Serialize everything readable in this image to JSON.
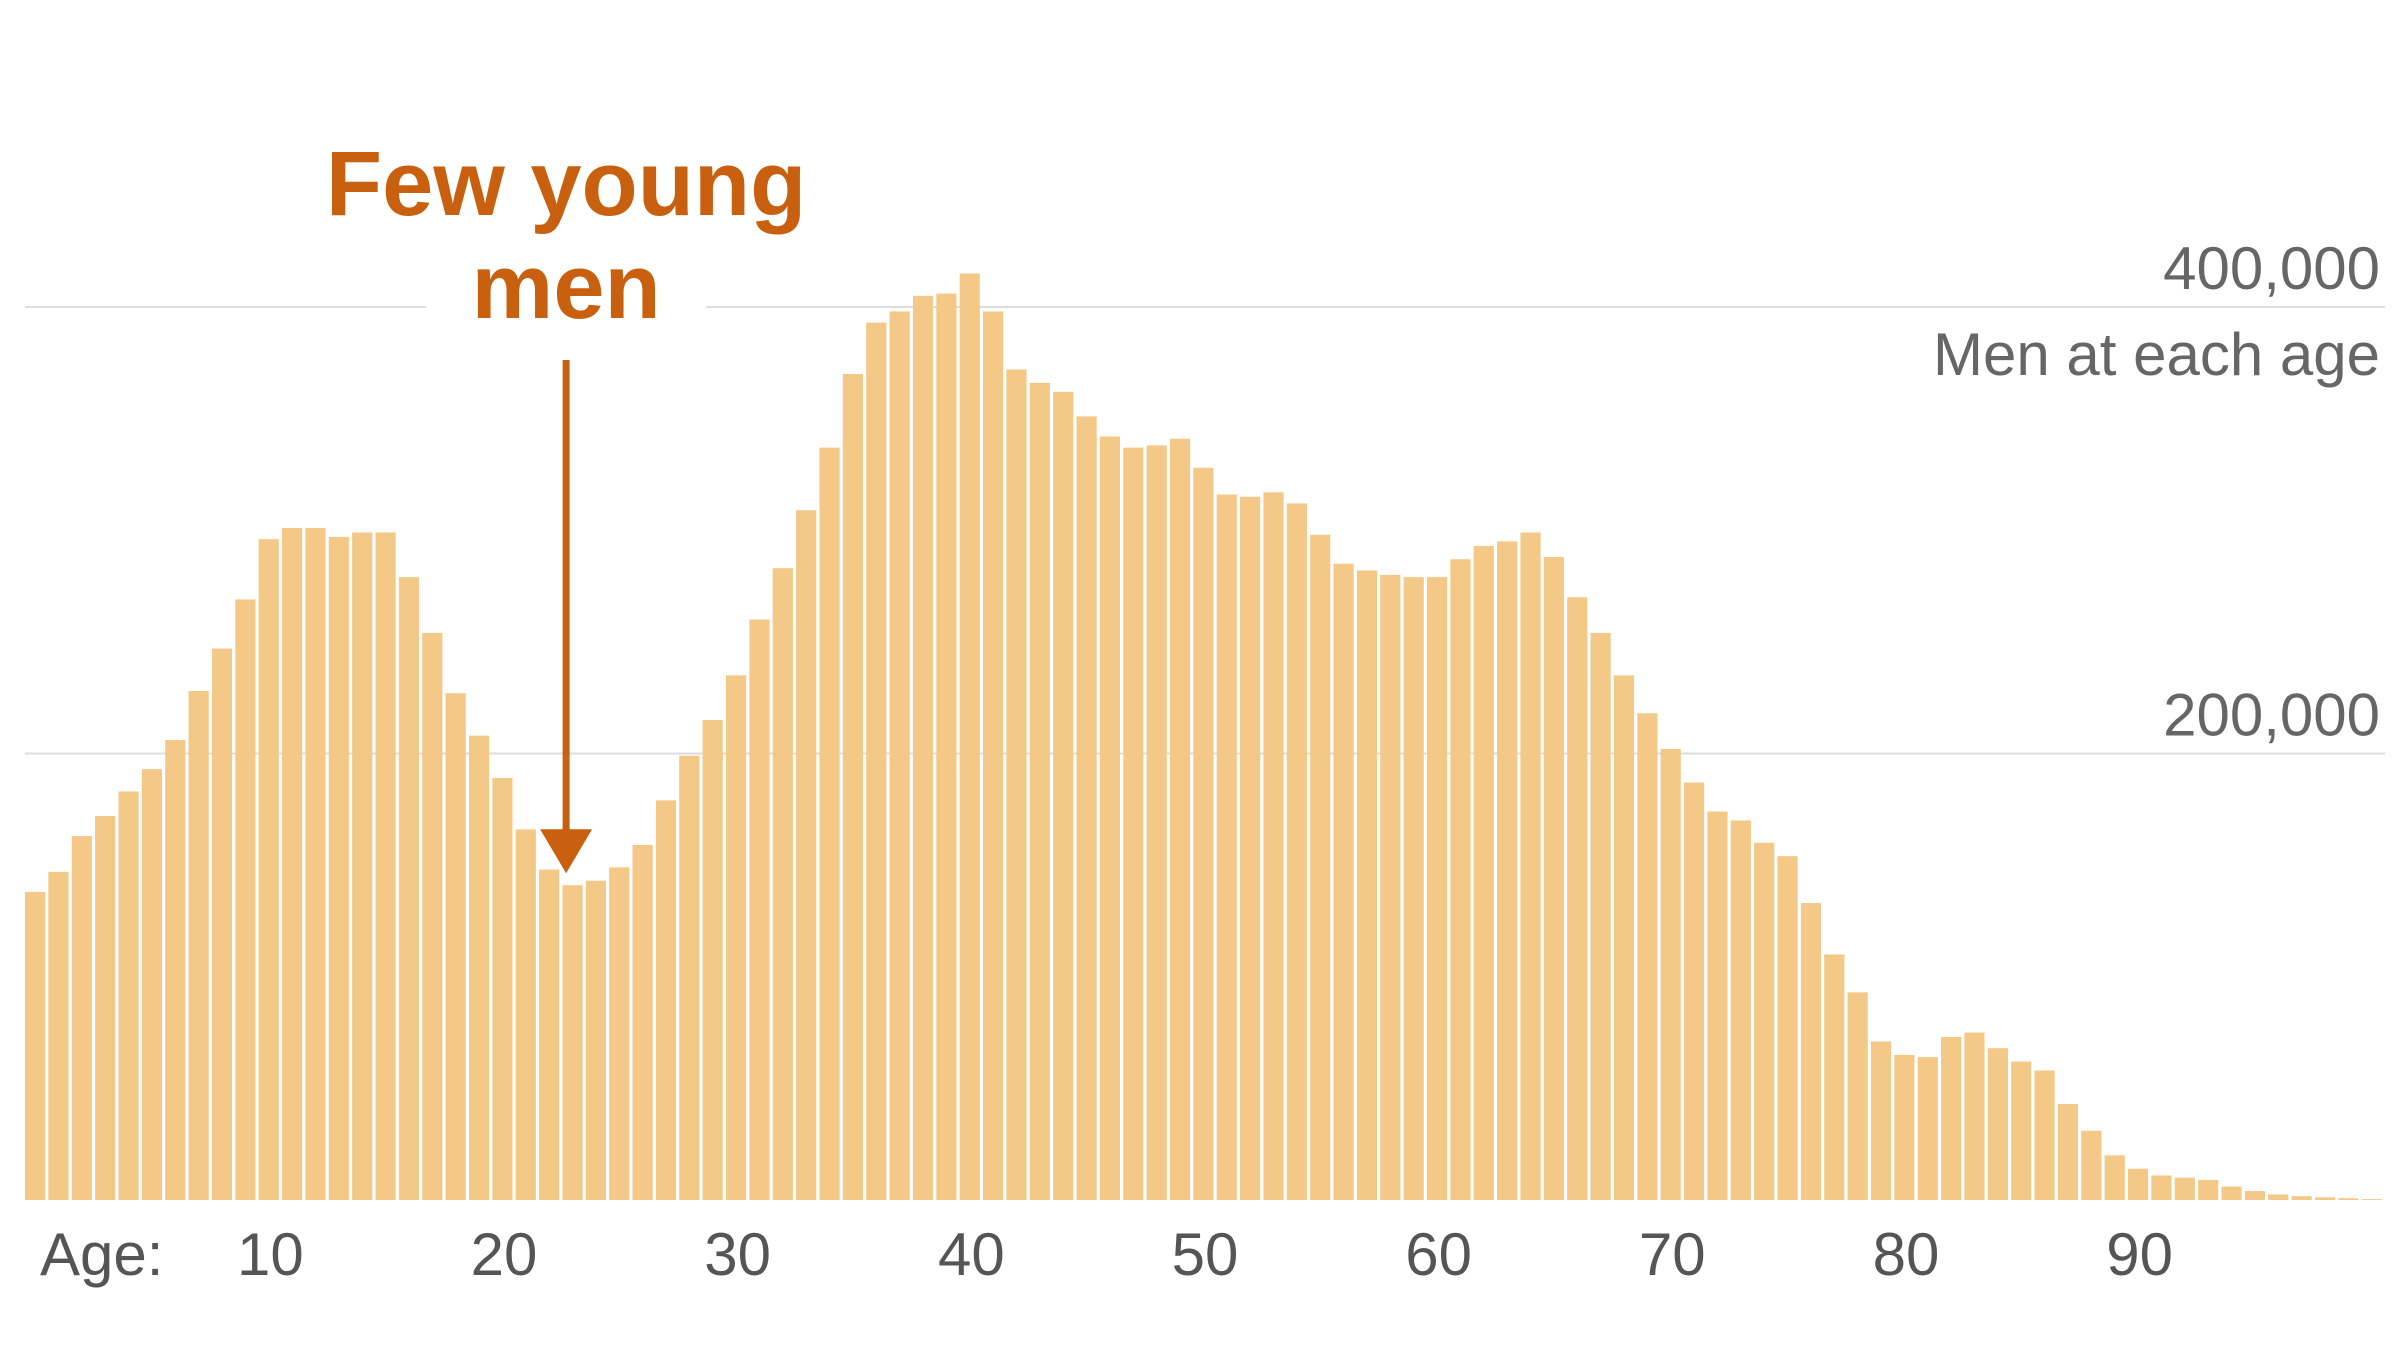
{
  "chart_data": {
    "type": "bar",
    "title": "",
    "xlabel": "Age:",
    "ylabel": "Men at each age",
    "x": [
      0,
      1,
      2,
      3,
      4,
      5,
      6,
      7,
      8,
      9,
      10,
      11,
      12,
      13,
      14,
      15,
      16,
      17,
      18,
      19,
      20,
      21,
      22,
      23,
      24,
      25,
      26,
      27,
      28,
      29,
      30,
      31,
      32,
      33,
      34,
      35,
      36,
      37,
      38,
      39,
      40,
      41,
      42,
      43,
      44,
      45,
      46,
      47,
      48,
      49,
      50,
      51,
      52,
      53,
      54,
      55,
      56,
      57,
      58,
      59,
      60,
      61,
      62,
      63,
      64,
      65,
      66,
      67,
      68,
      69,
      70,
      71,
      72,
      73,
      74,
      75,
      76,
      77,
      78,
      79,
      80,
      81,
      82,
      83,
      84,
      85,
      86,
      87,
      88,
      89,
      90,
      91,
      92,
      93,
      94,
      95,
      96,
      97,
      98,
      99,
      100
    ],
    "values": [
      138000,
      147000,
      163000,
      172000,
      183000,
      193000,
      206000,
      228000,
      247000,
      269000,
      296000,
      301000,
      301000,
      297000,
      299000,
      299000,
      279000,
      254000,
      227000,
      208000,
      189000,
      166000,
      148000,
      141000,
      143000,
      149000,
      159000,
      179000,
      199000,
      215000,
      235000,
      260000,
      283000,
      309000,
      337000,
      370000,
      393000,
      398000,
      405000,
      406000,
      415000,
      398000,
      372000,
      366000,
      362000,
      351000,
      342000,
      337000,
      338000,
      341000,
      328000,
      316000,
      315000,
      317000,
      312000,
      298000,
      285000,
      282000,
      280000,
      279000,
      279000,
      287000,
      293000,
      295000,
      299000,
      288000,
      270000,
      254000,
      235000,
      218000,
      202000,
      187000,
      174000,
      170000,
      160000,
      154000,
      133000,
      110000,
      93000,
      71000,
      65000,
      64000,
      73000,
      75000,
      68000,
      62000,
      58000,
      43000,
      31000,
      20000,
      14000,
      11000,
      10000,
      9000,
      6000,
      4000,
      2500,
      1700,
      1200,
      800,
      400
    ],
    "ylim": [
      0,
      430000
    ],
    "yticks": [
      200000,
      400000
    ],
    "ytick_labels": [
      "200,000",
      "400,000"
    ],
    "xticks": [
      10,
      20,
      30,
      40,
      50,
      60,
      70,
      80,
      90
    ],
    "xtick_labels": [
      "10",
      "20",
      "30",
      "40",
      "50",
      "60",
      "70",
      "80",
      "90"
    ],
    "grid": true,
    "annotations": [
      {
        "lines": [
          "Few young",
          "men"
        ],
        "target_x": 23
      }
    ]
  },
  "colors": {
    "bar": "#f4c887",
    "annotation": "#c8600f",
    "label": "#666666",
    "axis": "#555555",
    "grid": "#dddddd"
  }
}
